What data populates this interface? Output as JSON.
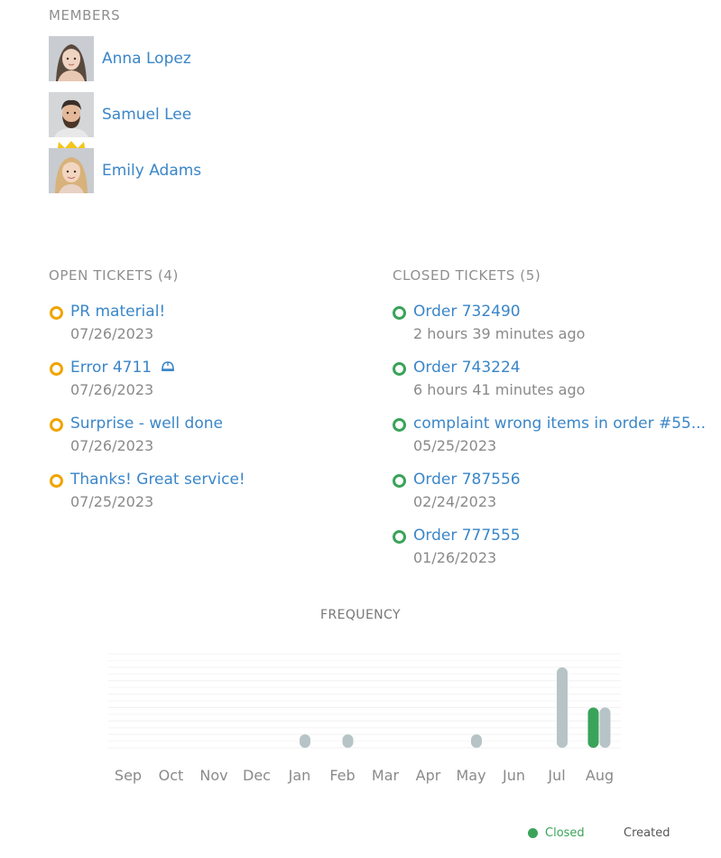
{
  "members": {
    "title": "MEMBERS",
    "items": [
      {
        "name": "Anna Lopez",
        "hair": "#5a4a3e",
        "skin": "#f0d4c2"
      },
      {
        "name": "Samuel Lee",
        "hair": "#3a2f28",
        "skin": "#e3b99a"
      },
      {
        "name": "Emily Adams",
        "hair": "#d8b27a",
        "skin": "#f3d6c1",
        "crown": true
      }
    ]
  },
  "open_tickets": {
    "title": "OPEN TICKETS (4)",
    "items": [
      {
        "title": "PR material!",
        "date": "07/26/2023"
      },
      {
        "title": "Error 4711",
        "date": "07/26/2023",
        "icon": "helmet-icon"
      },
      {
        "title": "Surprise - well done",
        "date": "07/26/2023"
      },
      {
        "title": "Thanks! Great service!",
        "date": "07/25/2023"
      }
    ]
  },
  "closed_tickets": {
    "title": "CLOSED TICKETS (5)",
    "items": [
      {
        "title": "Order 732490",
        "date": "2 hours 39 minutes ago"
      },
      {
        "title": "Order 743224",
        "date": "6 hours 41 minutes ago"
      },
      {
        "title": "complaint wrong items in order #55...",
        "date": "05/25/2023"
      },
      {
        "title": "Order 787556",
        "date": "02/24/2023"
      },
      {
        "title": "Order 777555",
        "date": "01/26/2023"
      }
    ]
  },
  "chart_data": {
    "type": "bar",
    "title": "FREQUENCY",
    "categories": [
      "Sep",
      "Oct",
      "Nov",
      "Dec",
      "Jan",
      "Feb",
      "Mar",
      "Apr",
      "May",
      "Jun",
      "Jul",
      "Aug"
    ],
    "series": [
      {
        "name": "Closed",
        "values": [
          0,
          0,
          0,
          0,
          0,
          0,
          0,
          0,
          0,
          0,
          0,
          3
        ],
        "color": "#3aa35a"
      },
      {
        "name": "Created",
        "values": [
          0,
          0,
          0,
          0,
          1,
          1,
          0,
          0,
          1,
          0,
          6,
          3
        ],
        "color": "#b7c4c7"
      }
    ],
    "ylim": [
      0,
      7
    ],
    "grid": true,
    "legend": "bottom-right"
  },
  "colors": {
    "link": "#3a86c8",
    "open_dot": "#f0a500",
    "closed_dot": "#3aa35a",
    "closed_legend_text": "#3aa35a",
    "created_legend_text": "#555555"
  }
}
